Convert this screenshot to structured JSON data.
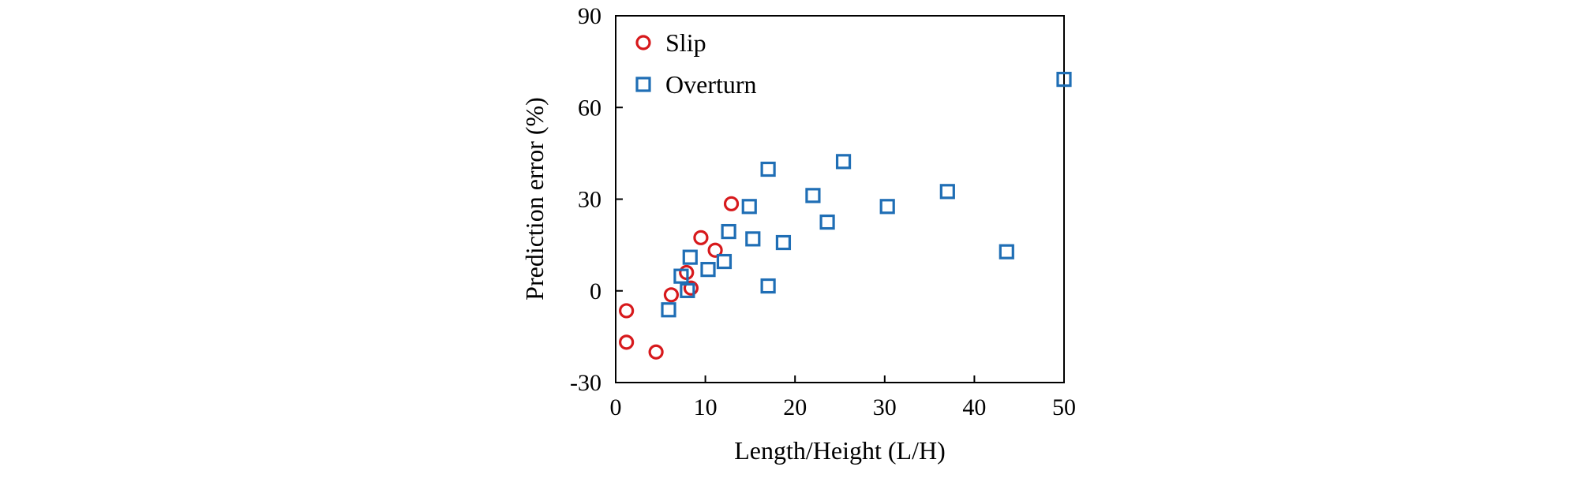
{
  "chart_data": {
    "type": "scatter",
    "title": "",
    "xlabel": "Length/Height (L/H)",
    "ylabel": "Prediction error (%)",
    "xlim": [
      0,
      50
    ],
    "ylim": [
      -30,
      90
    ],
    "xticks": [
      0,
      10,
      20,
      30,
      40,
      50
    ],
    "yticks": [
      -30,
      0,
      30,
      60,
      90
    ],
    "grid": false,
    "legend_position": "top-left",
    "series": [
      {
        "name": "Slip",
        "marker": "circle",
        "color": "#d7191c",
        "points": [
          [
            1.2,
            -6.5
          ],
          [
            1.2,
            -16.8
          ],
          [
            4.5,
            -20.0
          ],
          [
            6.2,
            -1.3
          ],
          [
            7.9,
            6.0
          ],
          [
            8.4,
            0.9
          ],
          [
            9.5,
            17.4
          ],
          [
            11.1,
            13.3
          ],
          [
            12.9,
            28.5
          ]
        ]
      },
      {
        "name": "Overturn",
        "marker": "square",
        "color": "#1f6eb5",
        "points": [
          [
            5.9,
            -6.2
          ],
          [
            7.3,
            4.8
          ],
          [
            8.0,
            0.1
          ],
          [
            8.3,
            11.0
          ],
          [
            10.3,
            7.0
          ],
          [
            12.1,
            9.6
          ],
          [
            12.6,
            19.4
          ],
          [
            14.9,
            27.6
          ],
          [
            15.3,
            17.0
          ],
          [
            17.0,
            39.8
          ],
          [
            17.0,
            1.6
          ],
          [
            18.7,
            15.8
          ],
          [
            22.0,
            31.2
          ],
          [
            23.6,
            22.5
          ],
          [
            25.4,
            42.3
          ],
          [
            30.3,
            27.6
          ],
          [
            37.0,
            32.5
          ],
          [
            43.6,
            12.8
          ],
          [
            50.0,
            69.2
          ]
        ]
      }
    ]
  }
}
